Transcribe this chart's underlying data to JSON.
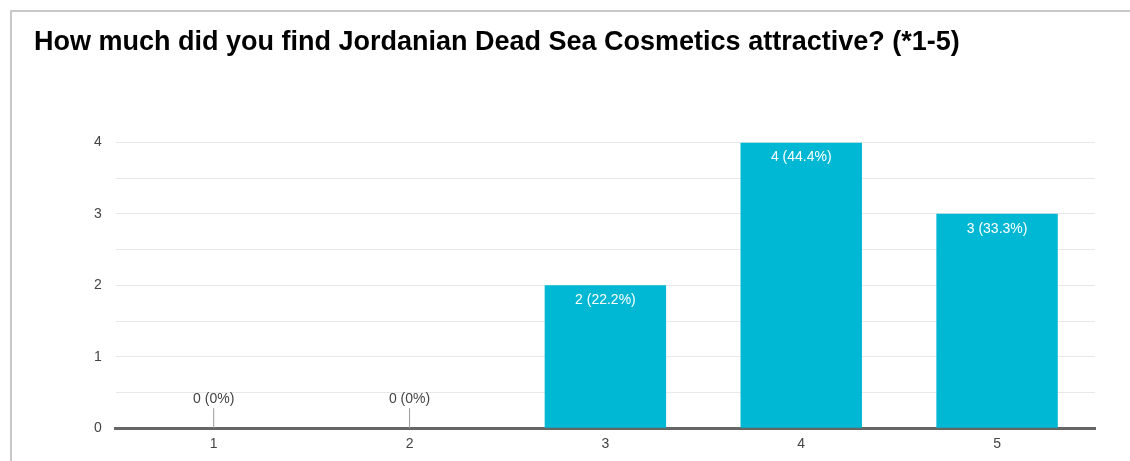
{
  "chart_data": {
    "type": "bar",
    "title": "How much did you find Jordanian Dead Sea Cosmetics attractive? (*1-5)",
    "categories": [
      "1",
      "2",
      "3",
      "4",
      "5"
    ],
    "values": [
      0,
      0,
      2,
      4,
      3
    ],
    "value_labels": [
      "0 (0%)",
      "0 (0%)",
      "2 (22.2%)",
      "4 (44.4%)",
      "3 (33.3%)"
    ],
    "color": "#00b8d4",
    "ylim": [
      0,
      4
    ],
    "yticks": [
      0,
      {
        "value": 0.5,
        "label": null
      },
      1,
      {
        "value": 1.5,
        "label": null
      },
      2,
      {
        "value": 2.5,
        "label": null
      },
      3,
      {
        "value": 3.5,
        "label": null
      },
      4
    ],
    "grid": true
  }
}
